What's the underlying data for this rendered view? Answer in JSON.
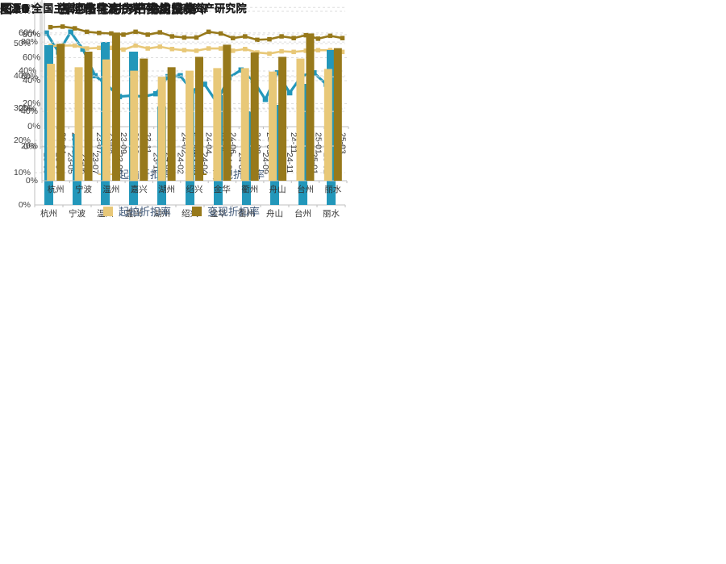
{
  "page": {
    "background": "#FFFFFF"
  },
  "colors": {
    "teal": "#2397BA",
    "light_gold": "#E8C878",
    "dark_gold": "#97791B",
    "axis": "#BFBFBF",
    "grid": "#DDDDDD",
    "tick_text": "#404040",
    "legend_text": "#3F5878"
  },
  "figures": [
    {
      "caption_label": "图18：",
      "caption_title": "浙江住宅房产平均成交率",
      "source": "来源：全国主要网络司法拍卖平台，浙商资产研究院"
    },
    {
      "caption_label": "图19：",
      "caption_title": "浙江住宅房产拍卖价格",
      "source": "来源：全国主要网络司法拍卖平台，浙商资产研究院"
    },
    {
      "caption_label": "图20：",
      "caption_title": "各地市住宅房产平均成交率",
      "source": "来源：全国主要网络司法拍卖平台，浙商资产研究院"
    },
    {
      "caption_label": "图21：",
      "caption_title": "各地市住宅房产拍卖价格",
      "source": "来源：全国主要网络司法拍卖平台，浙商资产研究院"
    }
  ],
  "chart_data": [
    {
      "type": "line",
      "title": "浙江住宅房产平均成交率",
      "x": [
        "23-03",
        "23-04",
        "23-05",
        "23-06",
        "23-07",
        "23-08",
        "23-09",
        "23-10",
        "23-11",
        "23-12",
        "24-01",
        "24-02",
        "24-03",
        "24-04",
        "24-05",
        "24-06",
        "24-07",
        "24-08",
        "24-09",
        "24-10",
        "24-11",
        "24-12",
        "25-01",
        "25-02",
        "25-03"
      ],
      "series": [
        {
          "name": "平均成交率",
          "color": "#2397BA",
          "values": [
            60,
            50,
            60.5,
            51.5,
            37.5,
            32.5,
            26.5,
            27,
            26.5,
            28,
            37,
            37.5,
            29.5,
            33,
            23.5,
            36.5,
            40.5,
            35,
            25,
            39,
            28.5,
            37.5,
            39,
            33,
            33
          ]
        }
      ],
      "ylim": [
        0,
        74
      ],
      "yticks": [
        0,
        20,
        40,
        60
      ],
      "grid": true,
      "legend_position": "none"
    },
    {
      "type": "line",
      "title": "浙江住宅房产拍卖价格",
      "x": [
        "23-03",
        "23-04",
        "23-05",
        "23-06",
        "23-07",
        "23-08",
        "23-09",
        "23-10",
        "23-11",
        "23-12",
        "24-01",
        "24-02",
        "24-03",
        "24-04",
        "24-05",
        "24-06",
        "24-07",
        "24-08",
        "24-09",
        "24-10",
        "24-11",
        "24-12",
        "25-01",
        "25-02",
        "25-03"
      ],
      "series": [
        {
          "name": "起拍折扣率",
          "color": "#E8C878",
          "values": [
            70,
            70.5,
            70.5,
            68,
            68.5,
            68.5,
            67,
            70.5,
            68,
            69.5,
            67.5,
            66.5,
            66,
            68,
            68,
            66,
            67.5,
            64.5,
            63.5,
            65.5,
            65,
            66,
            66.5,
            66.5,
            65
          ]
        },
        {
          "name": "变现折扣率",
          "color": "#97791B",
          "values": [
            86.5,
            87,
            85.5,
            82.5,
            81.5,
            81,
            80,
            82.5,
            80,
            82,
            78.5,
            77.5,
            77.5,
            82.5,
            81,
            77,
            78.5,
            75.5,
            76,
            78.5,
            77,
            79.5,
            76.5,
            79,
            77
          ]
        }
      ],
      "ylim": [
        0,
        104.5
      ],
      "yticks": [
        0,
        20,
        40,
        60,
        80
      ],
      "grid": true,
      "legend_position": "bottom"
    },
    {
      "type": "bar",
      "title": "各地市住宅房产平均成交率",
      "categories": [
        "杭州",
        "宁波",
        "温州",
        "嘉兴",
        "湖州",
        "绍兴",
        "金华",
        "衢州",
        "舟山",
        "台州",
        "丽水"
      ],
      "series": [
        {
          "name": "平均成交率",
          "color": "#2397BA",
          "values": [
            49.5,
            22,
            50.5,
            47.5,
            30.5,
            34.5,
            34,
            29,
            31,
            37.5,
            48
          ]
        }
      ],
      "ylim": [
        0,
        61.5
      ],
      "yticks": [
        0,
        10,
        20,
        30,
        40,
        50,
        60
      ],
      "grid": true,
      "legend_position": "none"
    },
    {
      "type": "bar",
      "title": "各地市住宅房产拍卖价格",
      "categories": [
        "杭州",
        "宁波",
        "温州",
        "嘉兴",
        "湖州",
        "绍兴",
        "金华",
        "衢州",
        "舟山",
        "台州",
        "丽水"
      ],
      "series": [
        {
          "name": "起拍折扣率",
          "color": "#E8C878",
          "values": [
            67.5,
            65.5,
            70,
            63.5,
            60,
            63.5,
            65,
            65,
            63,
            70.5,
            64.5
          ]
        },
        {
          "name": "变现折扣率",
          "color": "#97791B",
          "values": [
            79,
            74.5,
            85.5,
            70.5,
            65.5,
            71.5,
            78.5,
            74,
            71.5,
            85,
            76.5
          ]
        }
      ],
      "ylim": [
        0,
        101.5
      ],
      "yticks": [
        0,
        20,
        40,
        60,
        80,
        100
      ],
      "grid": true,
      "legend_position": "bottom"
    }
  ]
}
